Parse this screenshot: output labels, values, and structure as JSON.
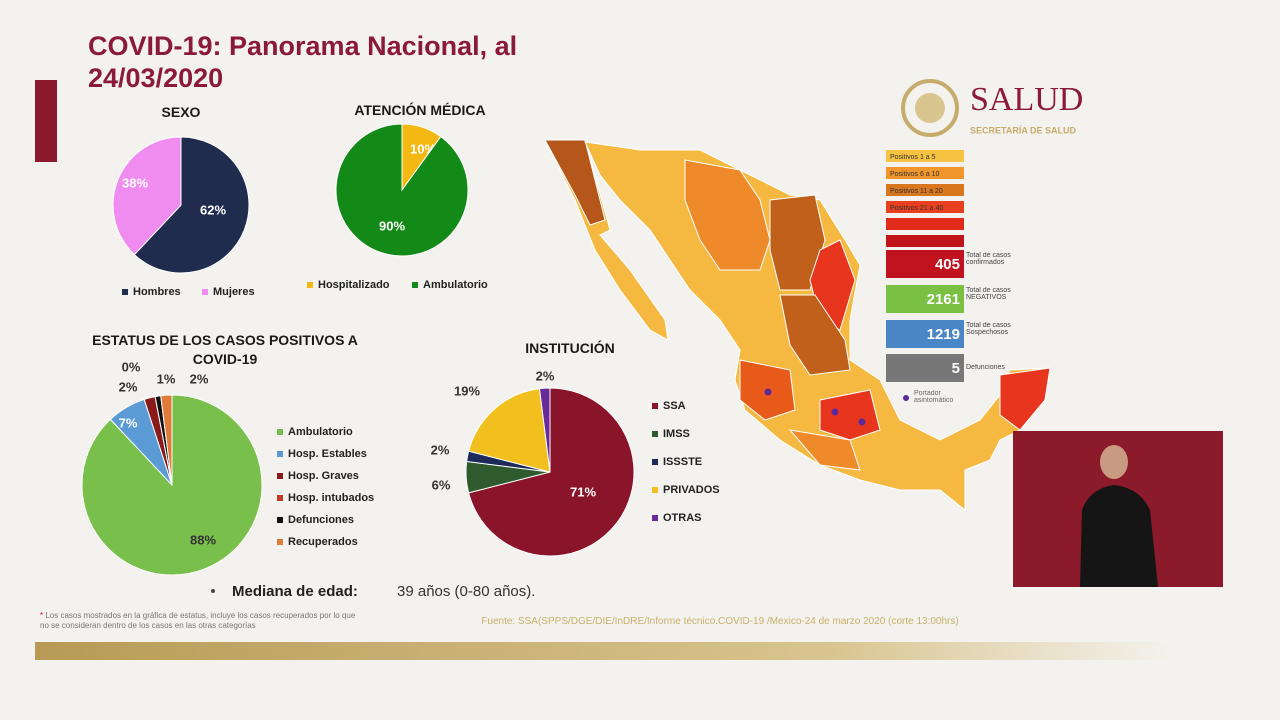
{
  "header": {
    "title_lines": [
      "COVID-19: Panorama Nacional, al",
      "24/03/2020"
    ]
  },
  "logo": {
    "name": "SALUD",
    "subtitle": "SECRETARÍA DE SALUD"
  },
  "chart_data": [
    {
      "type": "pie",
      "title": "SEXO",
      "categories": [
        "Hombres",
        "Mujeres"
      ],
      "values": [
        62,
        38
      ],
      "value_labels": [
        "62%",
        "38%"
      ],
      "colors": [
        "#1f2c4e",
        "#f08cef"
      ],
      "legend": "bottom"
    },
    {
      "type": "pie",
      "title": "ATENCIÓN MÉDICA",
      "categories": [
        "Hospitalizado",
        "Ambulatorio"
      ],
      "values": [
        10,
        90
      ],
      "value_labels": [
        "10%",
        "90%"
      ],
      "colors": [
        "#f4b813",
        "#138a17"
      ],
      "legend": "bottom"
    },
    {
      "type": "pie",
      "title": "ESTATUS DE LOS CASOS POSITIVOS A COVID-19",
      "categories": [
        "Ambulatorio",
        "Hosp. Estables",
        "Hosp. Graves",
        "Hosp. intubados",
        "Defunciones",
        "Recuperados"
      ],
      "values": [
        88,
        7,
        2,
        0,
        1,
        2
      ],
      "value_labels": [
        "88%",
        "7%",
        "2%",
        "0%",
        "1%",
        "2%"
      ],
      "colors": [
        "#79bf4c",
        "#5b9bd5",
        "#8b1a1a",
        "#c0392b",
        "#111111",
        "#e07b39"
      ],
      "legend": "right"
    },
    {
      "type": "pie",
      "title": "INSTITUCIÓN",
      "categories": [
        "SSA",
        "IMSS",
        "ISSSTE",
        "PRIVADOS",
        "OTRAS"
      ],
      "values": [
        71,
        6,
        2,
        19,
        2
      ],
      "value_labels": [
        "71%",
        "6%",
        "2%",
        "19%",
        "2%"
      ],
      "colors": [
        "#8a1429",
        "#2e5a2e",
        "#1e2a5a",
        "#f2c01e",
        "#6a2a9a"
      ],
      "legend": "right"
    }
  ],
  "map": {
    "legend": [
      "Positivos 1 a 5",
      "Positivos 6 a 10",
      "Positivos 11 a 20",
      "Positivos 21 a 40"
    ],
    "stats": [
      {
        "value": 405,
        "label": "Total de casos confirmados"
      },
      {
        "value": 2161,
        "label": "Total de casos NEGATIVOS"
      },
      {
        "value": 1219,
        "label": "Total de casos Sospechosos"
      },
      {
        "value": 5,
        "label": "Defunciones"
      }
    ],
    "marker_label": "Portador asintomático"
  },
  "median": {
    "label": "Mediana de edad:",
    "text": "39 años (0-80 años)."
  },
  "footnote": "Los casos mostrados en la gráfica de estatus, incluye los casos recuperados por lo que no se consideran dentro de los casos en las otras categorías",
  "source": "Fuente: SSA(SPPS/DGE/DIE/InDRE/Informe técnico.COVID-19 /Mexico-24 de marzo 2020 (corte 13:00hrs)"
}
